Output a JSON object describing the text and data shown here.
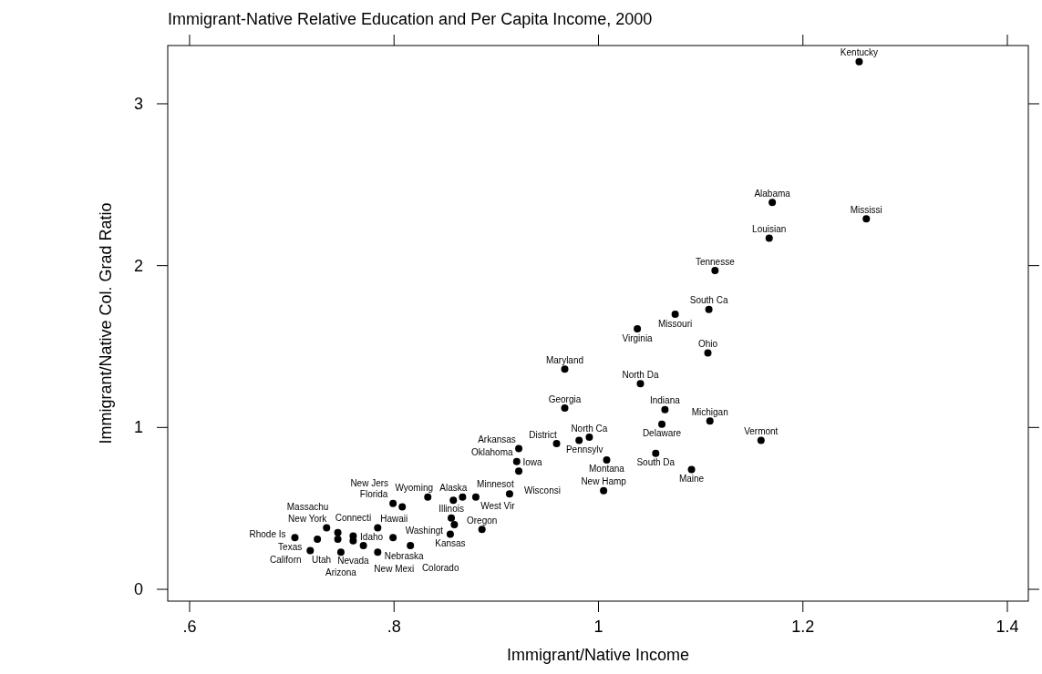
{
  "chart_data": {
    "type": "scatter",
    "title": "Immigrant-Native Relative Education and Per Capita Income, 2000",
    "xlabel": "Immigrant/Native Income",
    "ylabel": "Immigrant/Native Col. Grad Ratio",
    "xlim": [
      0.5786,
      1.4205
    ],
    "ylim": [
      -0.073,
      3.36
    ],
    "xticks": [
      {
        "value": 0.6,
        "label": ".6"
      },
      {
        "value": 0.8,
        "label": ".8"
      },
      1,
      1.2,
      1.4
    ],
    "yticks": [
      0,
      1,
      2,
      3
    ],
    "grid": false,
    "legend": false,
    "marker": "circle",
    "series": [
      {
        "color": "#000000",
        "x": [
          1.255,
          1.17,
          1.262,
          1.167,
          1.114,
          1.108,
          1.075,
          1.038,
          1.107,
          0.967,
          1.041,
          0.967,
          1.065,
          1.062,
          1.109,
          1.159,
          0.991,
          0.981,
          0.959,
          0.922,
          0.92,
          0.922,
          1.008,
          1.056,
          1.091,
          1.005,
          0.913,
          0.833,
          0.867,
          0.858,
          0.88,
          0.799,
          0.808,
          0.856,
          0.859,
          0.886,
          0.855,
          0.734,
          0.784,
          0.703,
          0.745,
          0.799,
          0.76,
          0.725,
          0.76,
          0.745,
          0.816,
          0.77,
          0.718,
          0.748,
          0.784
        ],
        "values": [
          3.26,
          2.39,
          2.29,
          2.17,
          1.97,
          1.73,
          1.7,
          1.61,
          1.46,
          1.36,
          1.27,
          1.12,
          1.11,
          1.02,
          1.04,
          0.92,
          0.94,
          0.92,
          0.9,
          0.87,
          0.79,
          0.73,
          0.8,
          0.84,
          0.74,
          0.61,
          0.59,
          0.57,
          0.57,
          0.55,
          0.57,
          0.53,
          0.51,
          0.44,
          0.4,
          0.37,
          0.34,
          0.38,
          0.38,
          0.32,
          0.35,
          0.32,
          0.33,
          0.31,
          0.3,
          0.31,
          0.27,
          0.27,
          0.24,
          0.23,
          0.23
        ],
        "value_labels": [
          "Kentucky",
          "Alabama",
          "Mississi",
          "Louisian",
          "Tennesse",
          "South Ca",
          "Missouri",
          "Virginia",
          "Ohio",
          "Maryland",
          "North Da",
          "Georgia",
          "Indiana",
          "Delaware",
          "Michigan",
          "Vermont",
          "North Ca",
          "Pennsylv",
          "District",
          "Arkansas",
          "Oklahoma",
          "Iowa",
          "Montana",
          "South Da",
          "Maine",
          "New Hamp",
          "Wisconsi",
          "Wyoming",
          "Minnesot",
          "Alaska",
          "West Vir",
          "Florida",
          "New Jers",
          "Illinois",
          "Washingt",
          "Oregon",
          "Kansas",
          "New York",
          "Hawaii",
          "Rhode Is",
          "Massachu",
          "Nebraska",
          "Connecti",
          "Texas",
          "Nevada",
          "Utah",
          "Colorado",
          "Idaho",
          "Californ",
          "Arizona",
          "New Mexi"
        ]
      }
    ]
  }
}
